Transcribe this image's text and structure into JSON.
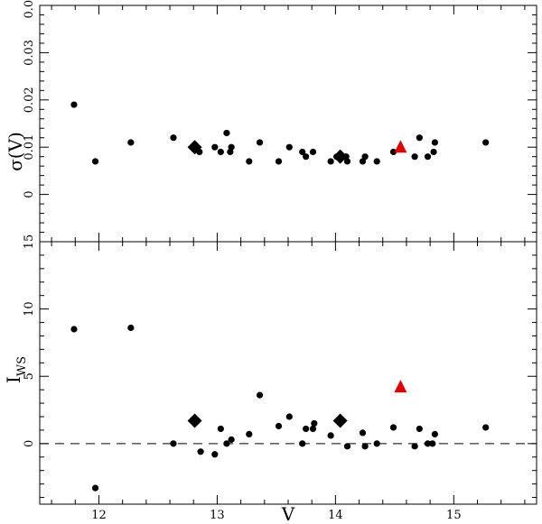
{
  "chart_data": [
    {
      "type": "scatter",
      "xlabel": "",
      "ylabel": "σ(V)",
      "xlim": [
        11.5,
        15.7
      ],
      "ylim": [
        -0.01,
        0.04
      ],
      "yticks": [
        0,
        0.01,
        0.02,
        0.03,
        0.04
      ],
      "ytick_labels": [
        "0",
        "0.01",
        "0.02",
        "0.03",
        "0.04"
      ],
      "xticks": [
        12,
        13,
        14,
        15
      ],
      "ytick_rotation": "vertical",
      "grid": false,
      "series": [
        {
          "marker": "circle",
          "color": "#000000",
          "points": [
            [
              11.79,
              0.019
            ],
            [
              11.97,
              0.007
            ],
            [
              12.27,
              0.011
            ],
            [
              12.63,
              0.012
            ],
            [
              12.85,
              0.009
            ],
            [
              12.98,
              0.01
            ],
            [
              13.03,
              0.009
            ],
            [
              13.08,
              0.013
            ],
            [
              13.11,
              0.009
            ],
            [
              13.12,
              0.01
            ],
            [
              13.27,
              0.007
            ],
            [
              13.36,
              0.011
            ],
            [
              13.52,
              0.007
            ],
            [
              13.61,
              0.01
            ],
            [
              13.72,
              0.009
            ],
            [
              13.75,
              0.008
            ],
            [
              13.81,
              0.009
            ],
            [
              13.96,
              0.007
            ],
            [
              14.01,
              0.008
            ],
            [
              14.09,
              0.008
            ],
            [
              14.1,
              0.007
            ],
            [
              14.23,
              0.007
            ],
            [
              14.25,
              0.008
            ],
            [
              14.35,
              0.007
            ],
            [
              14.49,
              0.009
            ],
            [
              14.67,
              0.008
            ],
            [
              14.71,
              0.012
            ],
            [
              14.78,
              0.008
            ],
            [
              14.83,
              0.009
            ],
            [
              14.84,
              0.011
            ],
            [
              15.27,
              0.011
            ]
          ]
        },
        {
          "marker": "diamond",
          "color": "#000000",
          "points": [
            [
              12.81,
              0.01
            ],
            [
              14.04,
              0.008
            ]
          ]
        },
        {
          "marker": "triangle",
          "color": "#e00000",
          "points": [
            [
              14.55,
              0.01
            ]
          ]
        }
      ]
    },
    {
      "type": "scatter",
      "xlabel": "V",
      "ylabel": "I",
      "ylabel_subscript": "WS",
      "xlim": [
        11.5,
        15.7
      ],
      "ylim": [
        -4.5,
        15
      ],
      "yticks": [
        0,
        5,
        10,
        15
      ],
      "ytick_labels": [
        "0",
        "5",
        "10",
        "15"
      ],
      "xticks": [
        12,
        13,
        14,
        15
      ],
      "xtick_labels": [
        "12",
        "13",
        "14",
        "15"
      ],
      "ytick_rotation": "vertical",
      "reference_line": {
        "y": 0,
        "style": "dashed"
      },
      "grid": false,
      "series": [
        {
          "marker": "circle",
          "color": "#000000",
          "points": [
            [
              11.79,
              8.5
            ],
            [
              11.97,
              -3.3
            ],
            [
              12.27,
              8.6
            ],
            [
              12.63,
              0.0
            ],
            [
              12.86,
              -0.6
            ],
            [
              12.98,
              -0.8
            ],
            [
              13.03,
              1.1
            ],
            [
              13.08,
              0.0
            ],
            [
              13.12,
              0.3
            ],
            [
              13.27,
              0.7
            ],
            [
              13.36,
              3.6
            ],
            [
              13.52,
              1.3
            ],
            [
              13.61,
              2.0
            ],
            [
              13.72,
              0.0
            ],
            [
              13.75,
              1.1
            ],
            [
              13.81,
              1.1
            ],
            [
              13.82,
              1.5
            ],
            [
              13.96,
              0.6
            ],
            [
              14.1,
              -0.2
            ],
            [
              14.23,
              0.8
            ],
            [
              14.25,
              -0.2
            ],
            [
              14.35,
              0.0
            ],
            [
              14.49,
              1.2
            ],
            [
              14.67,
              -0.2
            ],
            [
              14.71,
              1.1
            ],
            [
              14.78,
              0.0
            ],
            [
              14.82,
              0.0
            ],
            [
              14.84,
              0.7
            ],
            [
              15.27,
              1.2
            ]
          ]
        },
        {
          "marker": "diamond",
          "color": "#000000",
          "points": [
            [
              12.81,
              1.7
            ],
            [
              14.04,
              1.7
            ]
          ]
        },
        {
          "marker": "triangle",
          "color": "#e00000",
          "points": [
            [
              14.55,
              4.2
            ]
          ]
        }
      ]
    }
  ]
}
